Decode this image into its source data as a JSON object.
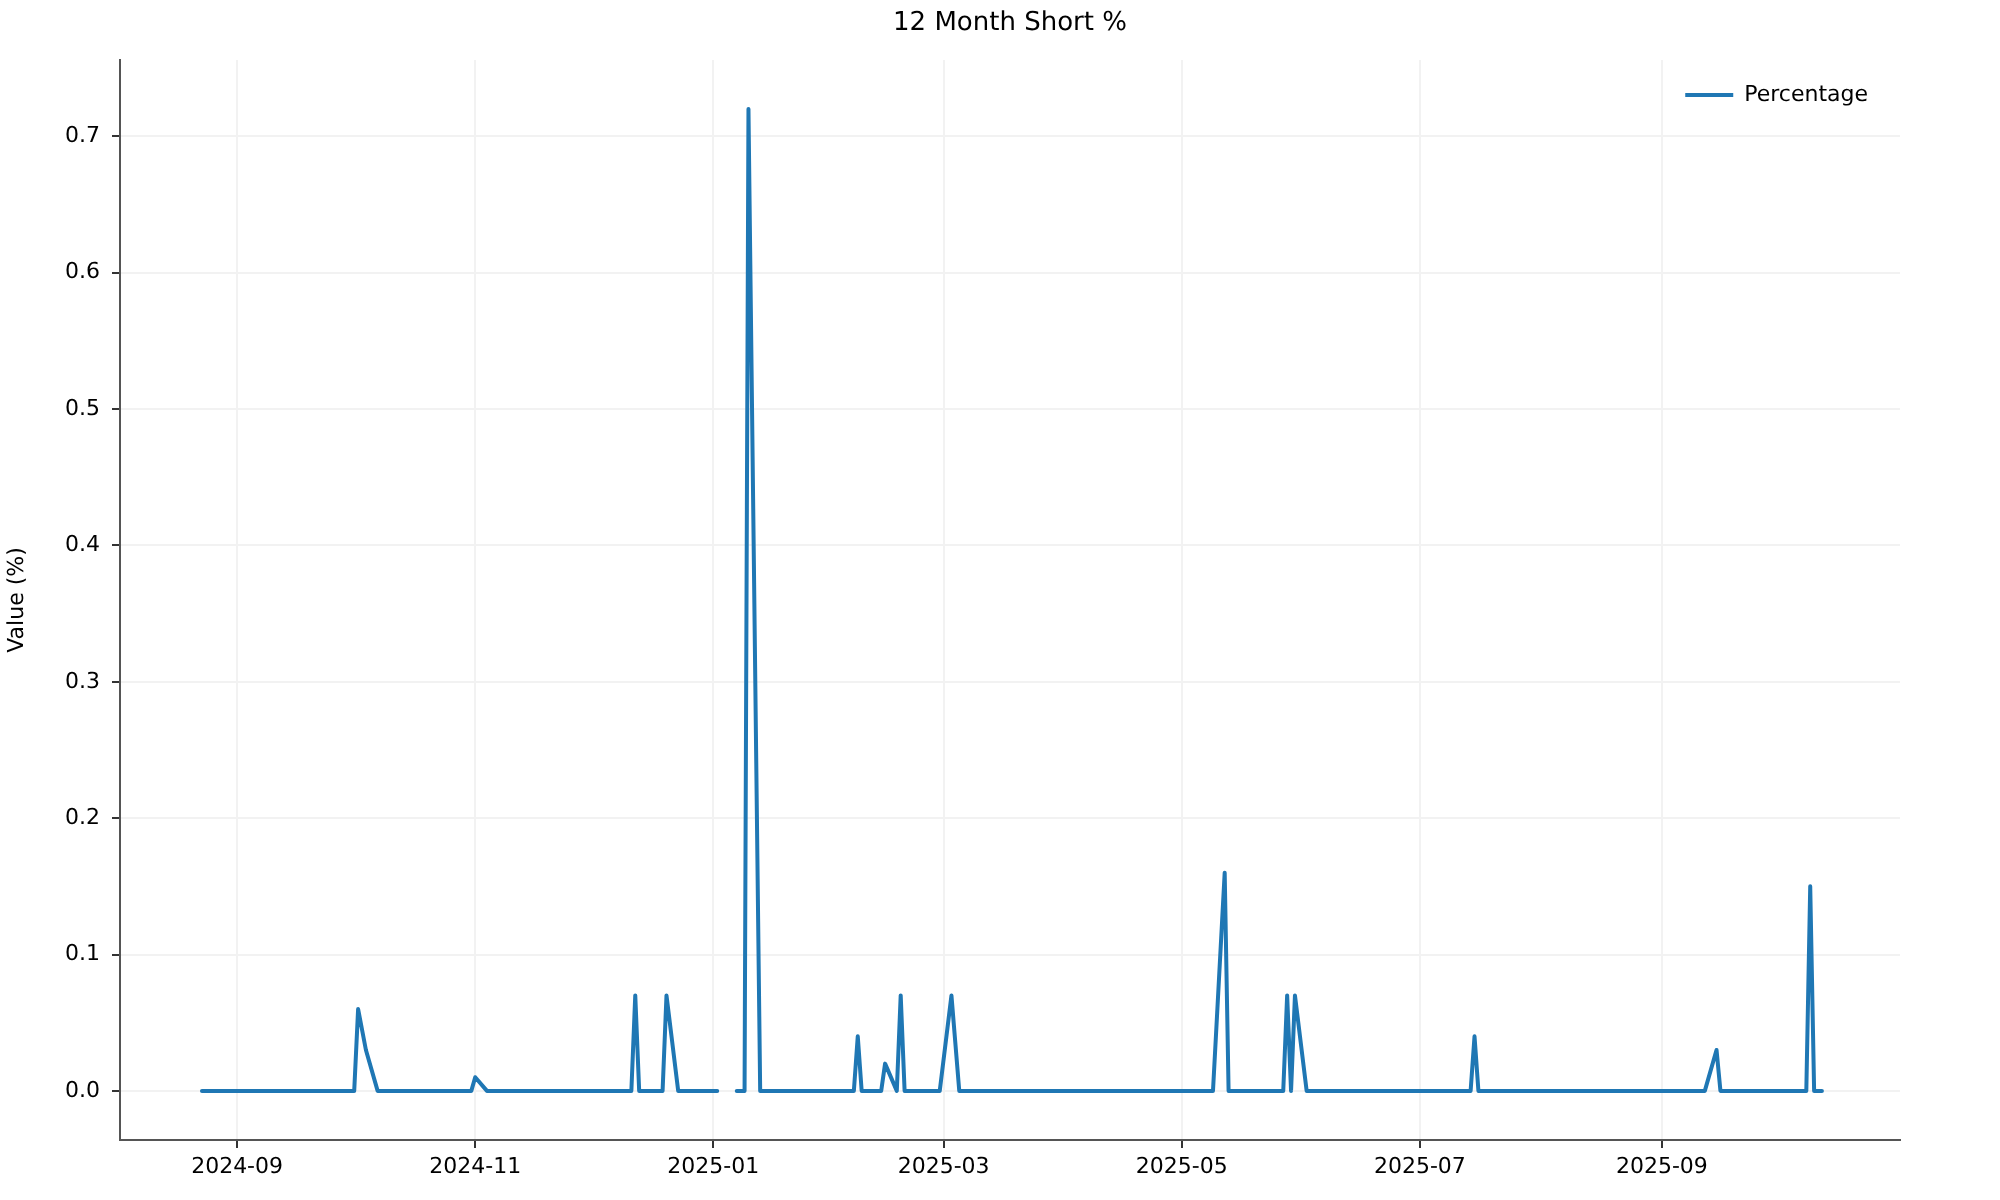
{
  "chart_data": {
    "type": "line",
    "title": "12 Month Short %",
    "ylabel": "Value (%)",
    "x": [
      "2024-08-23",
      "2024-10-01",
      "2024-10-02",
      "2024-10-04",
      "2024-10-07",
      "2024-10-31",
      "2024-11-01",
      "2024-11-04",
      "2024-12-11",
      "2024-12-12",
      "2024-12-13",
      "2024-12-19",
      "2024-12-20",
      "2024-12-23",
      "2025-01-02",
      "2025-01-03",
      "2025-01-07",
      "2025-01-09",
      "2025-01-10",
      "2025-01-13",
      "2025-02-06",
      "2025-02-07",
      "2025-02-08",
      "2025-02-13",
      "2025-02-14",
      "2025-02-17",
      "2025-02-18",
      "2025-02-19",
      "2025-02-28",
      "2025-03-03",
      "2025-03-05",
      "2025-05-09",
      "2025-05-12",
      "2025-05-13",
      "2025-05-27",
      "2025-05-28",
      "2025-05-29",
      "2025-05-30",
      "2025-06-02",
      "2025-07-14",
      "2025-07-15",
      "2025-07-16",
      "2025-09-12",
      "2025-09-15",
      "2025-09-16",
      "2025-10-08",
      "2025-10-09",
      "2025-10-10",
      "2025-10-12"
    ],
    "series": [
      {
        "name": "Percentage",
        "color": "#1f77b4",
        "values": [
          0,
          0,
          0.06,
          0.03,
          0,
          0,
          0.01,
          0,
          0,
          0.07,
          0,
          0,
          0.07,
          0,
          0,
          null,
          0,
          0,
          0.72,
          0,
          0,
          0.04,
          0,
          0,
          0.02,
          0,
          0.07,
          0,
          0,
          0.07,
          0,
          0,
          0.16,
          0,
          0,
          0.07,
          0,
          0.07,
          0,
          0,
          0.04,
          0,
          0,
          0.03,
          0,
          0,
          0.15,
          0,
          0
        ]
      }
    ],
    "xlim": [
      "2024-08-02",
      "2025-11-01"
    ],
    "xticks": [
      "2024-09",
      "2024-11",
      "2025-01",
      "2025-03",
      "2025-05",
      "2025-07",
      "2025-09"
    ],
    "ylim": [
      -0.036,
      0.756
    ],
    "yticks": [
      {
        "value": 0,
        "label": "0.0"
      },
      0.1,
      0.2,
      0.3,
      0.4,
      0.5,
      0.6,
      0.7
    ],
    "grid": true,
    "legend": "top right"
  }
}
